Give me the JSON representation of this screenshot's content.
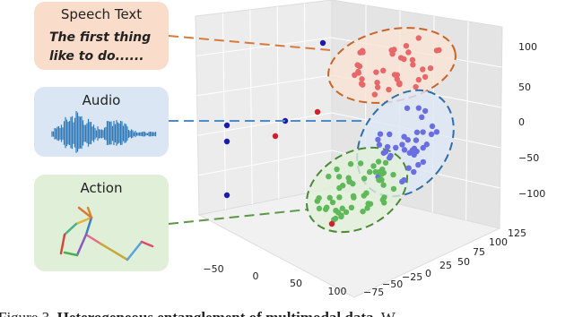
{
  "panels": [
    {
      "title": "Speech Text",
      "lines": [
        "The first thing",
        "like to do......"
      ]
    },
    {
      "title": "Audio"
    },
    {
      "title": "Action"
    }
  ],
  "axes": {
    "x_ticks": [
      "−50",
      "0",
      "50",
      "100"
    ],
    "y_ticks": [
      "125",
      "100",
      "75",
      "50",
      "25",
      "0",
      "−25",
      "−50",
      "−75"
    ],
    "z_ticks": [
      "100",
      "50",
      "0",
      "−50",
      "−100"
    ]
  },
  "caption": {
    "label": "Figure 3.",
    "bold": "Heterogeneous entanglement of multimodal data.",
    "rest": "W"
  }
}
